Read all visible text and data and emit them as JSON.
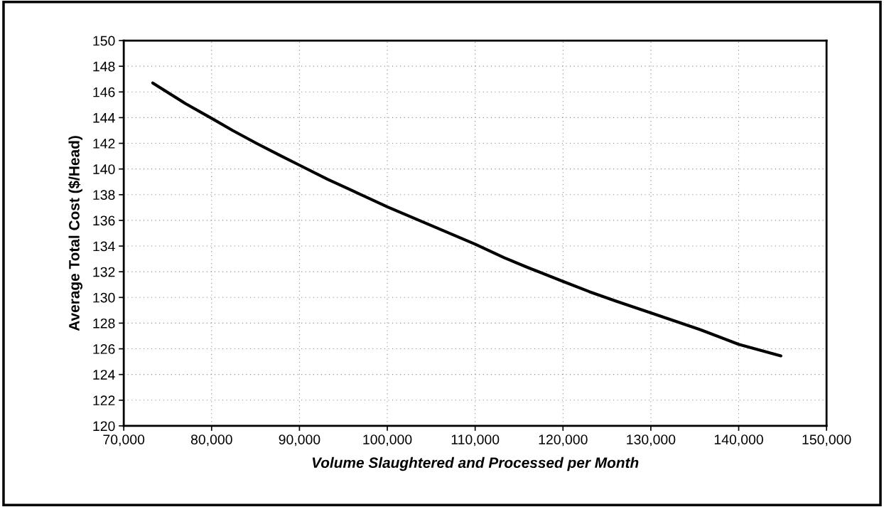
{
  "chart_data": {
    "type": "line",
    "xlabel": "Volume Slaughtered and Processed per Month",
    "ylabel": "Average Total Cost ($/Head)",
    "x": [
      73300,
      77000,
      80000,
      82400,
      85100,
      87800,
      90000,
      93200,
      95900,
      100000,
      105000,
      110000,
      113300,
      116100,
      120000,
      123000,
      126100,
      130000,
      132800,
      135600,
      140000,
      144800
    ],
    "series": [
      {
        "color": "#000000",
        "values": [
          146.7,
          145.1,
          143.95,
          143.0,
          142.0,
          141.05,
          140.3,
          139.2,
          138.35,
          137.05,
          135.6,
          134.15,
          133.1,
          132.3,
          131.25,
          130.45,
          129.7,
          128.8,
          128.15,
          127.5,
          126.35,
          125.45
        ]
      }
    ],
    "xlim": [
      70000,
      150000
    ],
    "xticks": [
      {
        "value": 70000,
        "label": "70,000"
      },
      {
        "value": 80000,
        "label": "80,000"
      },
      {
        "value": 90000,
        "label": "90,000"
      },
      {
        "value": 100000,
        "label": "100,000"
      },
      {
        "value": 110000,
        "label": "110,000"
      },
      {
        "value": 120000,
        "label": "120,000"
      },
      {
        "value": 130000,
        "label": "130,000"
      },
      {
        "value": 140000,
        "label": "140,000"
      },
      {
        "value": 150000,
        "label": "150,000"
      }
    ],
    "ylim": [
      120,
      150
    ],
    "yticks": [
      120,
      122,
      124,
      126,
      128,
      130,
      132,
      134,
      136,
      138,
      140,
      142,
      144,
      146,
      148,
      150
    ],
    "grid": true,
    "marker": "none",
    "line_style": "solid"
  }
}
